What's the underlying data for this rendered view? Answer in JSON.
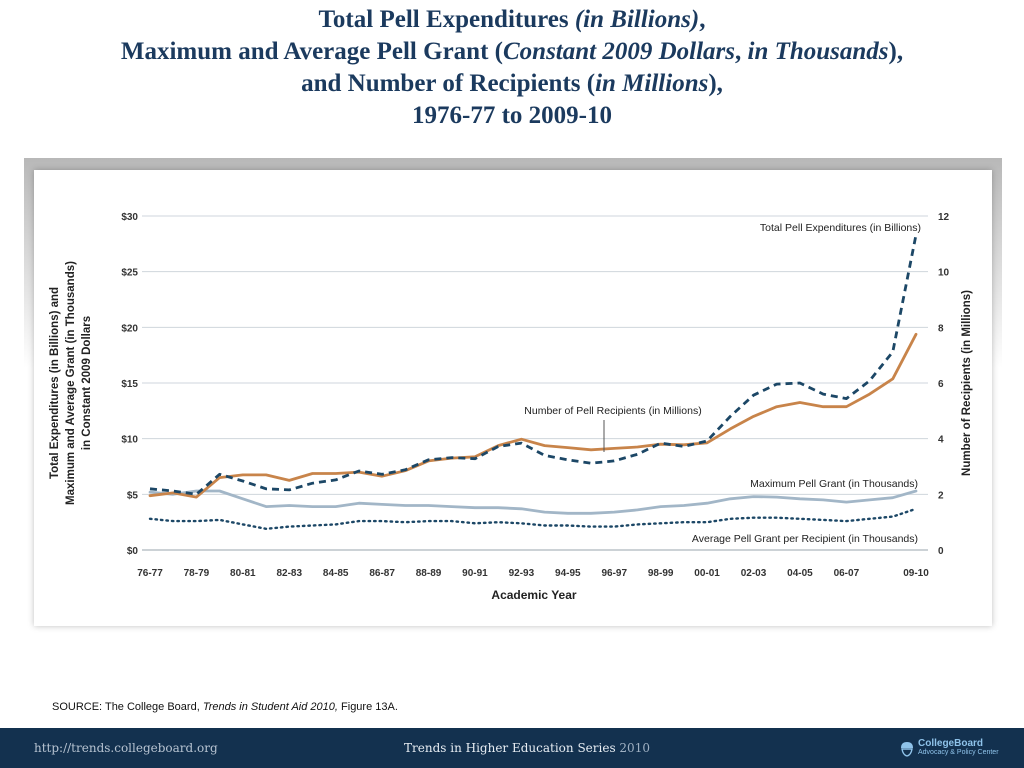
{
  "title": {
    "line1_main": "Total Pell Expenditures ",
    "line1_ital": "(in Billions)",
    "line1_end": ",",
    "line2_main": "Maximum and Average Pell Grant (",
    "line2_ital1": "Constant 2009 Dollars",
    "line2_sep": ", ",
    "line2_ital2": "in Thousands",
    "line2_end": "),",
    "line3_main": "and Number of Recipients (",
    "line3_ital": "in Millions",
    "line3_end": "),",
    "line4": "1976-77 to 2009-10"
  },
  "source": {
    "prefix": "SOURCE: The College Board, ",
    "italic": "Trends in Student Aid 2010,",
    "suffix": " Figure 13A."
  },
  "footer": {
    "url": "http://trends.collegeboard.org",
    "series": "Trends in Higher Education Series ",
    "series_year": "2010",
    "logo_name": "CollegeBoard",
    "logo_sub": "Advocacy & Policy Center",
    "bg_color": "#13314f"
  },
  "chart_data": {
    "type": "line",
    "xlabel": "Academic Year",
    "ylabel_left": [
      "Total Expenditures (in Billions) and",
      "Maximum and Average Grant (in Thousands)",
      "in Constant 2009 Dollars"
    ],
    "ylabel_right": "Number of Recipients (in Millions)",
    "ylim_left": [
      0,
      30
    ],
    "ylim_right": [
      0,
      12
    ],
    "yticks_left": [
      "$0",
      "$5",
      "$10",
      "$15",
      "$20",
      "$25",
      "$30"
    ],
    "yticks_right": [
      "0",
      "2",
      "4",
      "6",
      "8",
      "10",
      "12"
    ],
    "grid": true,
    "x": [
      "76-77",
      "77-78",
      "78-79",
      "79-80",
      "80-81",
      "81-82",
      "82-83",
      "83-84",
      "84-85",
      "85-86",
      "86-87",
      "87-88",
      "88-89",
      "89-90",
      "90-91",
      "91-92",
      "92-93",
      "93-94",
      "94-95",
      "95-96",
      "96-97",
      "97-98",
      "98-99",
      "99-00",
      "00-01",
      "01-02",
      "02-03",
      "03-04",
      "04-05",
      "05-06",
      "06-07",
      "07-08",
      "08-09",
      "09-10"
    ],
    "x_tick_labels": [
      "76-77",
      "78-79",
      "80-81",
      "82-83",
      "84-85",
      "86-87",
      "88-89",
      "90-91",
      "92-93",
      "94-95",
      "96-97",
      "98-99",
      "00-01",
      "02-03",
      "04-05",
      "06-07",
      "09-10"
    ],
    "x_tick_indices": [
      0,
      2,
      4,
      6,
      8,
      10,
      12,
      14,
      16,
      18,
      20,
      22,
      24,
      26,
      28,
      30,
      33
    ],
    "series": [
      {
        "name": "Total Pell Expenditures (in Billions)",
        "axis": "left",
        "color": "#1c4766",
        "style": "dashed",
        "values": [
          5.5,
          5.3,
          5.0,
          6.8,
          6.2,
          5.5,
          5.4,
          6.0,
          6.3,
          7.1,
          6.8,
          7.2,
          8.1,
          8.3,
          8.2,
          9.3,
          9.6,
          8.5,
          8.1,
          7.8,
          8.0,
          8.6,
          9.6,
          9.3,
          9.8,
          12.0,
          13.9,
          14.9,
          15.0,
          14.0,
          13.6,
          15.2,
          17.8,
          28.3
        ]
      },
      {
        "name": "Number of Pell Recipients (in Millions)",
        "axis": "right",
        "color": "#c8844a",
        "style": "solid",
        "values": [
          1.95,
          2.05,
          1.9,
          2.6,
          2.7,
          2.7,
          2.5,
          2.75,
          2.75,
          2.8,
          2.65,
          2.85,
          3.2,
          3.3,
          3.35,
          3.75,
          3.98,
          3.75,
          3.68,
          3.6,
          3.65,
          3.7,
          3.8,
          3.78,
          3.85,
          4.35,
          4.8,
          5.15,
          5.3,
          5.15,
          5.15,
          5.6,
          6.15,
          7.75
        ]
      },
      {
        "name": "Maximum Pell Grant (in Thousands)",
        "axis": "left",
        "color": "#a2b6c7",
        "style": "solid",
        "values": [
          5.2,
          5.0,
          5.3,
          5.3,
          4.6,
          3.9,
          4.0,
          3.9,
          3.9,
          4.2,
          4.1,
          4.0,
          4.0,
          3.9,
          3.8,
          3.8,
          3.7,
          3.4,
          3.3,
          3.3,
          3.4,
          3.6,
          3.9,
          4.0,
          4.2,
          4.6,
          4.8,
          4.75,
          4.6,
          4.5,
          4.3,
          4.5,
          4.7,
          5.3
        ]
      },
      {
        "name": "Average Pell Grant per Recipient (in Thousands)",
        "axis": "left",
        "color": "#1c4766",
        "style": "dotted",
        "values": [
          2.8,
          2.6,
          2.6,
          2.7,
          2.3,
          1.9,
          2.1,
          2.2,
          2.3,
          2.6,
          2.6,
          2.5,
          2.6,
          2.6,
          2.4,
          2.5,
          2.4,
          2.2,
          2.2,
          2.1,
          2.1,
          2.3,
          2.4,
          2.5,
          2.5,
          2.8,
          2.9,
          2.9,
          2.8,
          2.7,
          2.6,
          2.8,
          3.0,
          3.7
        ]
      }
    ],
    "annotations": [
      "Total Pell Expenditures (in Billions)",
      "Number of Pell Recipients (in Millions)",
      "Maximum Pell Grant (in Thousands)",
      "Average Pell Grant per Recipient (in Thousands)"
    ]
  }
}
